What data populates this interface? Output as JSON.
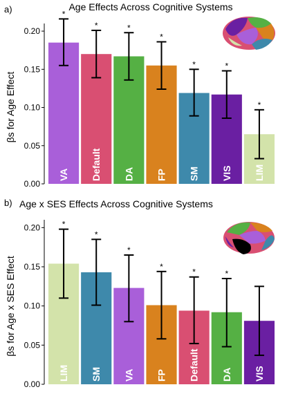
{
  "chart_data": [
    {
      "type": "bar",
      "panel_label": "a)",
      "title": "Age Effects Across Cognitive Systems",
      "xlabel": "",
      "ylabel": "βs for Age Effect",
      "ylim": [
        0,
        0.21
      ],
      "yticks": [
        "0.00",
        "0.05",
        "0.10",
        "0.15",
        "0.20"
      ],
      "ytick_values": [
        0,
        0.05,
        0.1,
        0.15,
        0.2
      ],
      "grid": false,
      "categories": [
        "VA",
        "Default",
        "DA",
        "FP",
        "SM",
        "VIS",
        "LIM"
      ],
      "values": [
        0.185,
        0.17,
        0.167,
        0.155,
        0.119,
        0.117,
        0.065
      ],
      "err_low": [
        0.155,
        0.139,
        0.136,
        0.124,
        0.089,
        0.086,
        0.033
      ],
      "err_high": [
        0.216,
        0.201,
        0.198,
        0.186,
        0.15,
        0.148,
        0.097
      ],
      "significance": [
        "*",
        "*",
        "*",
        "*",
        "*",
        "*",
        "*"
      ],
      "colors": [
        "#a95fd9",
        "#d94f72",
        "#55b044",
        "#d9821e",
        "#3e89ab",
        "#6a1fa2",
        "#d3e3aa"
      ]
    },
    {
      "type": "bar",
      "panel_label": "b)",
      "title": "Age x SES Effects Across Cognitive Systems",
      "xlabel": "",
      "ylabel": "βs for Age x SES Effect",
      "ylim": [
        0,
        0.21
      ],
      "yticks": [
        "0.00",
        "0.05",
        "0.10",
        "0.15",
        "0.20"
      ],
      "ytick_values": [
        0,
        0.05,
        0.1,
        0.15,
        0.2
      ],
      "grid": false,
      "categories": [
        "LIM",
        "SM",
        "VA",
        "FP",
        "Default",
        "DA",
        "VIS"
      ],
      "values": [
        0.154,
        0.143,
        0.123,
        0.101,
        0.094,
        0.092,
        0.081
      ],
      "err_low": [
        0.11,
        0.101,
        0.08,
        0.058,
        0.052,
        0.048,
        0.037
      ],
      "err_high": [
        0.198,
        0.185,
        0.165,
        0.144,
        0.137,
        0.135,
        0.125
      ],
      "significance": [
        "*",
        "*",
        "*",
        "*",
        "*",
        "*",
        ""
      ],
      "colors": [
        "#d3e3aa",
        "#3e89ab",
        "#a95fd9",
        "#d9821e",
        "#d94f72",
        "#55b044",
        "#6a1fa2"
      ]
    }
  ]
}
